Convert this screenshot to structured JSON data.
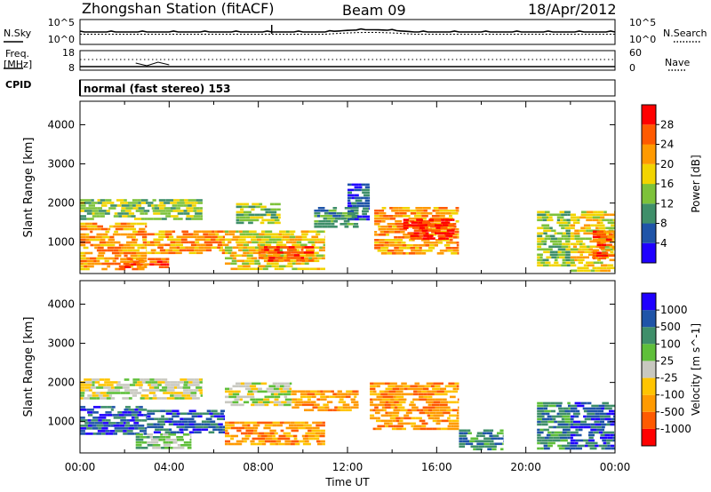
{
  "header": {
    "station": "Zhongshan Station (fitACF)",
    "beam": "Beam 09",
    "date": "18/Apr/2012"
  },
  "top_panels": {
    "nsky_label": "N.Sky",
    "nsearch_label": "N.Search",
    "noise_ticks_left": [
      "10^5",
      "10^0"
    ],
    "noise_ticks_right": [
      "10^5",
      "10^0"
    ],
    "freq_label": "Freq.",
    "freq_unit": "[MHz]",
    "freq_ticks": [
      "18",
      "8"
    ],
    "nave_label": "Nave",
    "nave_ticks": [
      "60",
      "0"
    ],
    "cpid_label": "CPID",
    "cpid_value": "normal (fast stereo) 153"
  },
  "colors": {
    "power": [
      "#1f00ff",
      "#1f54a8",
      "#3f8f6a",
      "#7dc23a",
      "#f2d400",
      "#ff9a00",
      "#ff5a00",
      "#ff0000"
    ],
    "velocity": [
      "#ff0000",
      "#ff5a00",
      "#ff9a00",
      "#ffc400",
      "#c8c8c0",
      "#5fbf3a",
      "#3f8f6a",
      "#1f54a8",
      "#1f00ff"
    ]
  },
  "chart_data": [
    {
      "type": "heatmap",
      "name": "power",
      "ylabel": "Slant Range [km]",
      "yticks": [
        1000,
        2000,
        3000,
        4000
      ],
      "ylim": [
        200,
        4600
      ],
      "xlim": [
        0,
        24
      ],
      "colorbar_label": "Power [dB]",
      "colorbar_ticks": [
        "4",
        "8",
        "12",
        "16",
        "20",
        "24",
        "28"
      ],
      "blobs": [
        {
          "t0": 0.0,
          "t1": 3.0,
          "r0": 300,
          "r1": 1500,
          "level": 5
        },
        {
          "t0": 0.0,
          "t1": 5.5,
          "r0": 1600,
          "r1": 2100,
          "level": 3
        },
        {
          "t0": 1.8,
          "t1": 4.0,
          "r0": 350,
          "r1": 600,
          "level": 6
        },
        {
          "t0": 3.0,
          "t1": 6.5,
          "r0": 700,
          "r1": 1300,
          "level": 5
        },
        {
          "t0": 6.5,
          "t1": 11.0,
          "r0": 300,
          "r1": 1300,
          "level": 4
        },
        {
          "t0": 7.0,
          "t1": 9.0,
          "r0": 1500,
          "r1": 2000,
          "level": 3
        },
        {
          "t0": 8.0,
          "t1": 10.5,
          "r0": 500,
          "r1": 900,
          "level": 6
        },
        {
          "t0": 10.5,
          "t1": 12.5,
          "r0": 1400,
          "r1": 1900,
          "level": 2
        },
        {
          "t0": 13.2,
          "t1": 17.0,
          "r0": 700,
          "r1": 1900,
          "level": 5
        },
        {
          "t0": 14.5,
          "t1": 16.8,
          "r0": 1100,
          "r1": 1600,
          "level": 7
        },
        {
          "t0": 12.0,
          "t1": 13.0,
          "r0": 1600,
          "r1": 2500,
          "level": 1
        },
        {
          "t0": 20.5,
          "t1": 22.0,
          "r0": 400,
          "r1": 1800,
          "level": 3
        },
        {
          "t0": 22.0,
          "t1": 24.0,
          "r0": 300,
          "r1": 1800,
          "level": 4
        },
        {
          "t0": 23.0,
          "t1": 24.0,
          "r0": 600,
          "r1": 1300,
          "level": 6
        }
      ]
    },
    {
      "type": "heatmap",
      "name": "velocity",
      "ylabel": "Slant Range [km]",
      "yticks": [
        1000,
        2000,
        3000,
        4000
      ],
      "ylim": [
        200,
        4600
      ],
      "xlim": [
        0,
        24
      ],
      "xlabel": "Time UT",
      "xticks": [
        "00:00",
        "04:00",
        "08:00",
        "12:00",
        "16:00",
        "20:00",
        "00:00"
      ],
      "colorbar_label": "Velocity [m s^-1]",
      "colorbar_ticks": [
        "-1000",
        "-500",
        "-100",
        "-25",
        "25",
        "100",
        "500",
        "1000"
      ],
      "blobs": [
        {
          "t0": 0.0,
          "t1": 3.0,
          "r0": 700,
          "r1": 1400,
          "level": 7
        },
        {
          "t0": 0.0,
          "t1": 5.5,
          "r0": 1600,
          "r1": 2100,
          "level": 4
        },
        {
          "t0": 2.5,
          "t1": 5.0,
          "r0": 300,
          "r1": 700,
          "level": 5
        },
        {
          "t0": 3.0,
          "t1": 6.5,
          "r0": 700,
          "r1": 1300,
          "level": 7
        },
        {
          "t0": 6.5,
          "t1": 11.0,
          "r0": 400,
          "r1": 1000,
          "level": 2
        },
        {
          "t0": 6.5,
          "t1": 9.5,
          "r0": 1400,
          "r1": 2000,
          "level": 4
        },
        {
          "t0": 9.5,
          "t1": 12.5,
          "r0": 1300,
          "r1": 1800,
          "level": 2
        },
        {
          "t0": 13.0,
          "t1": 17.0,
          "r0": 800,
          "r1": 2000,
          "level": 2
        },
        {
          "t0": 17.0,
          "t1": 19.0,
          "r0": 300,
          "r1": 800,
          "level": 6
        },
        {
          "t0": 20.5,
          "t1": 22.0,
          "r0": 300,
          "r1": 1500,
          "level": 6
        },
        {
          "t0": 22.0,
          "t1": 24.0,
          "r0": 300,
          "r1": 1500,
          "level": 7
        }
      ]
    }
  ]
}
